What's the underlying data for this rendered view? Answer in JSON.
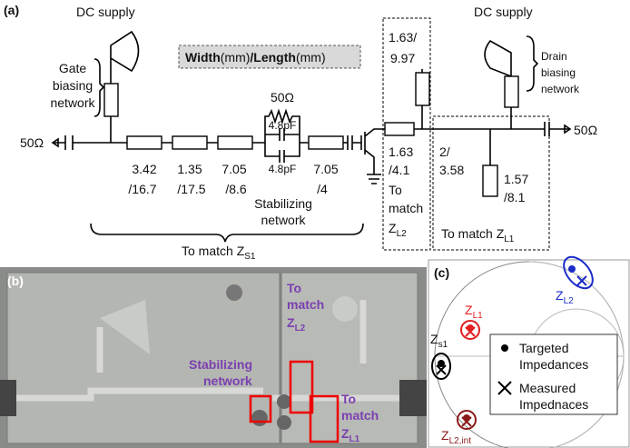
{
  "panel_a": {
    "label": "(a)",
    "dc_supply_gate": "DC supply",
    "gate_network": [
      "Gate",
      "biasing",
      "network"
    ],
    "dimension_key": {
      "width": "Width",
      "width_unit": "(mm)",
      "separator": "/",
      "length": "Length",
      "length_unit": "(mm)"
    },
    "source_port": "50Ω",
    "load_port": "50Ω",
    "input_lines": [
      {
        "width": "3.42",
        "length": "/16.7"
      },
      {
        "width": "1.35",
        "length": "/17.5"
      },
      {
        "width": "7.05",
        "length": "/8.6"
      },
      {
        "width": "7.05",
        "length": "/4"
      }
    ],
    "stabilizing": {
      "resistor": "50Ω",
      "capacitor_top": "4.8pF",
      "capacitor_bottom": "4.8pF",
      "label": [
        "Stabilizing",
        "network"
      ]
    },
    "input_match": {
      "text": "To match Z",
      "sub": "S1"
    },
    "output_stub_l2": {
      "width": "1.63/",
      "length": "9.97"
    },
    "output_line_l2": {
      "width": "1.63",
      "length": "/4.1"
    },
    "match_l2": {
      "lines": [
        "To",
        "match"
      ],
      "z": "Z",
      "sub": "L2"
    },
    "output_line_l1": {
      "width": "2/",
      "length": "3.58"
    },
    "output_stub_l1": {
      "width": "1.57",
      "length": "/8.1"
    },
    "match_l1": {
      "text": "To match Z",
      "sub": "L1"
    },
    "dc_supply_drain": "DC supply",
    "drain_network": [
      "Drain",
      "biasing",
      "network"
    ]
  },
  "panel_b": {
    "label": "(b)",
    "match_l2": {
      "lines": [
        "To",
        "match"
      ],
      "z": "Z",
      "sub": "L2"
    },
    "stabilizing": [
      "Stabilizing",
      "network"
    ],
    "match_l1": {
      "lines": [
        "To",
        "match"
      ],
      "z": "Z",
      "sub": "L1"
    }
  },
  "panel_c": {
    "label": "(c)",
    "points": [
      {
        "z": "Z",
        "sub": "L2"
      },
      {
        "z": "Z",
        "sub": "L1"
      },
      {
        "z": "Z",
        "sub": "s1"
      },
      {
        "z": "Z",
        "sub": "L2,int"
      }
    ],
    "legend": [
      [
        "Targeted",
        "Impedances"
      ],
      [
        "Measured",
        "Impednaces"
      ]
    ]
  }
}
